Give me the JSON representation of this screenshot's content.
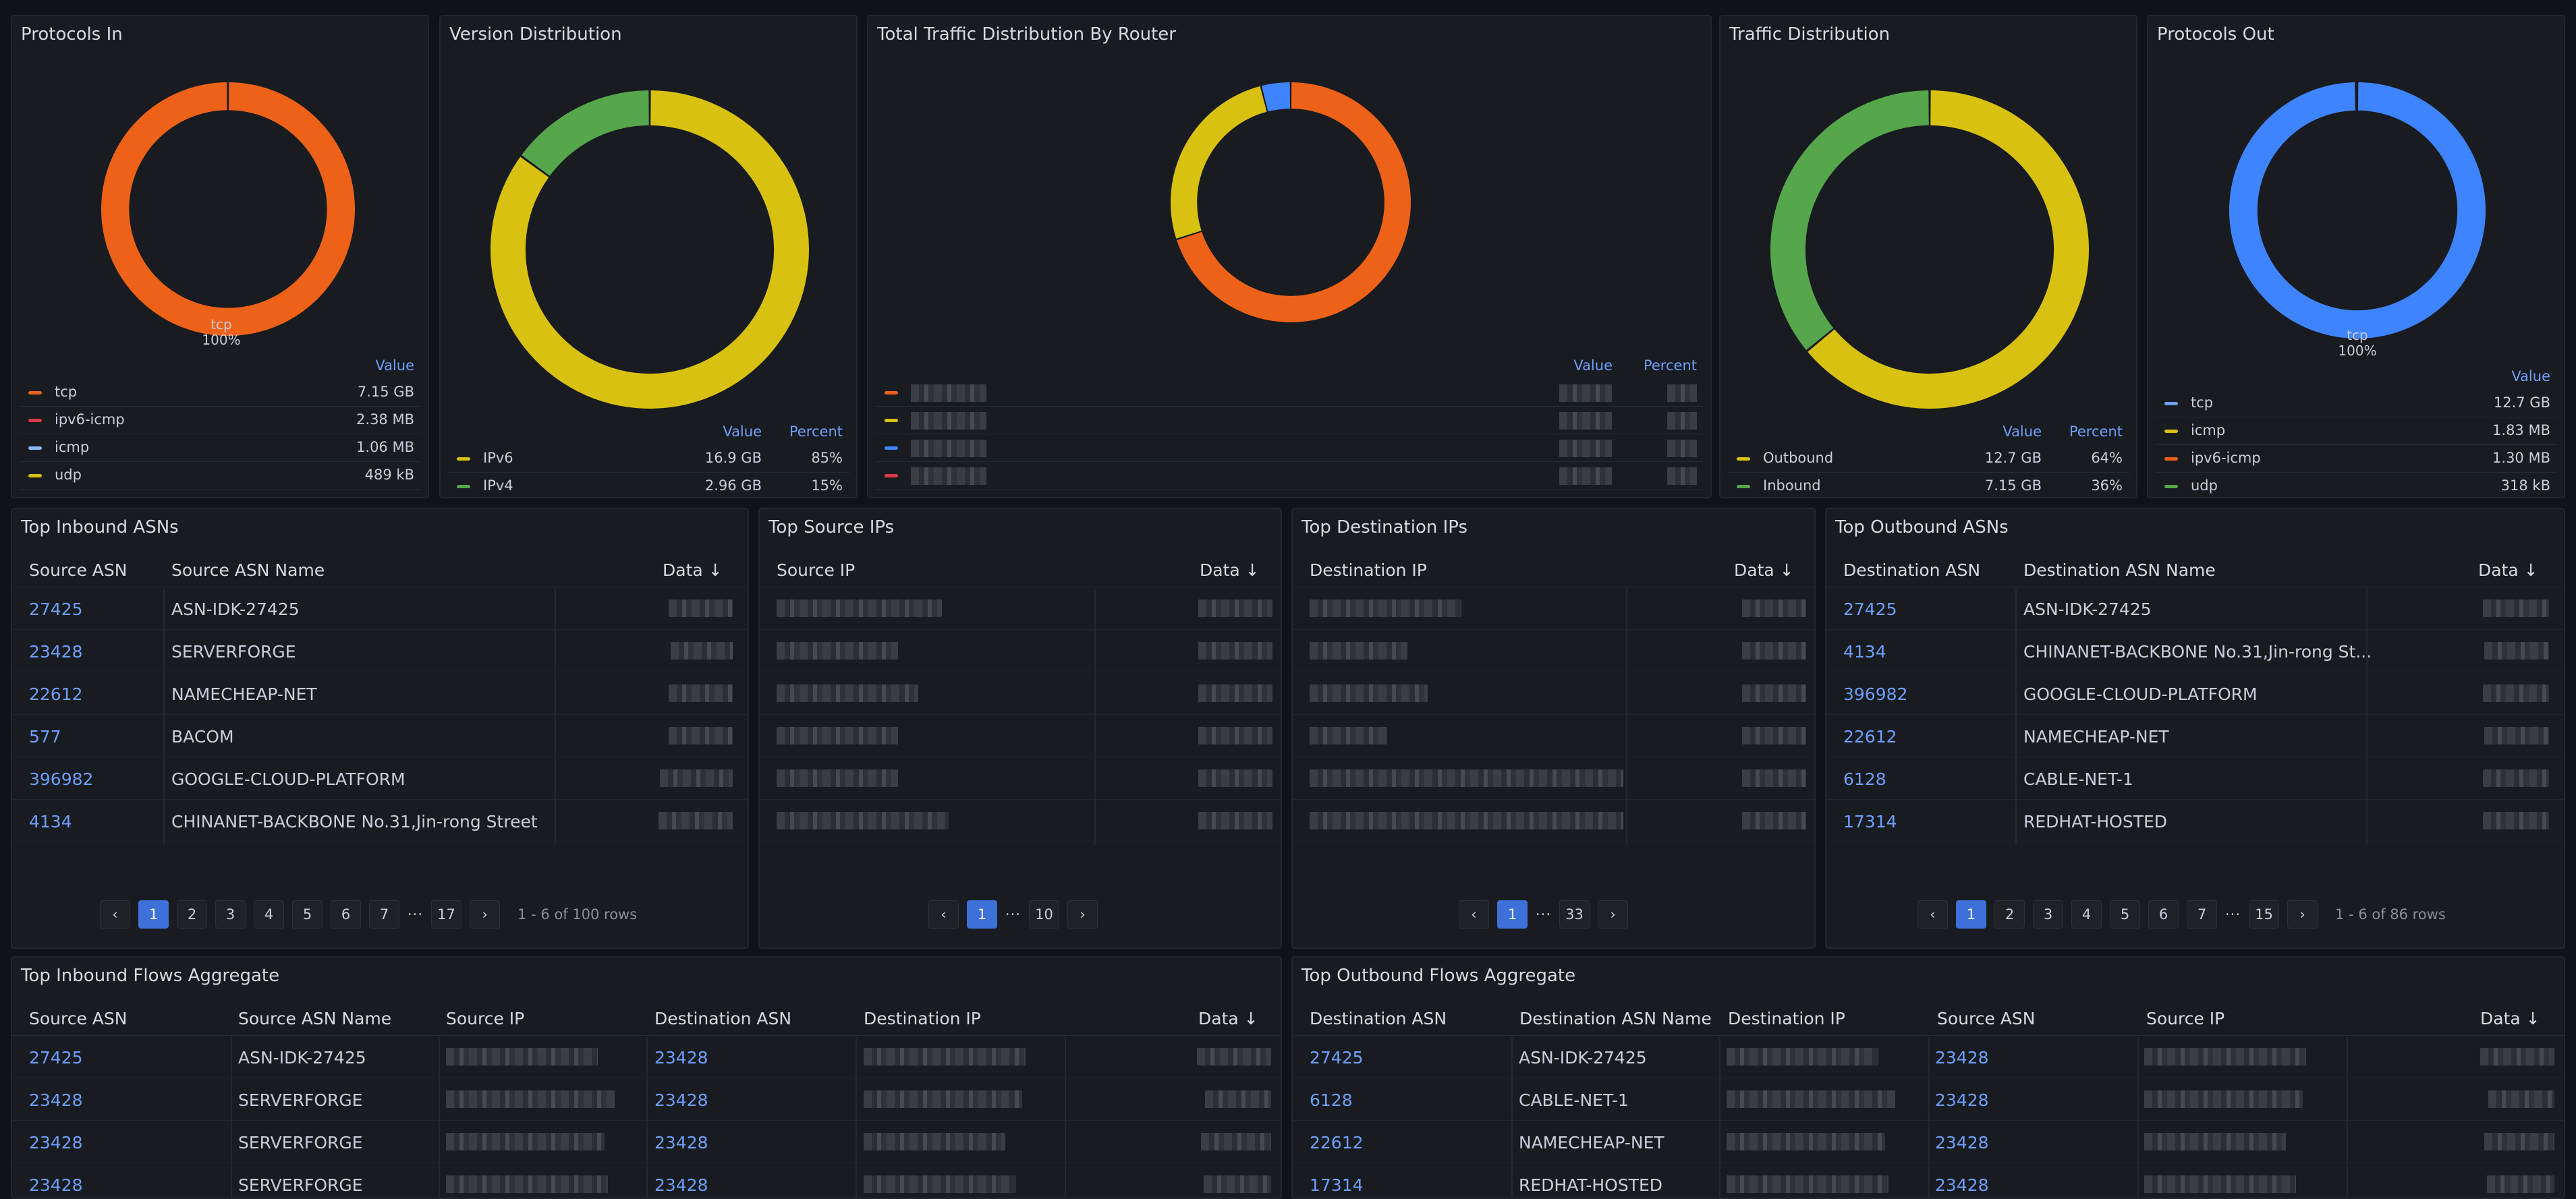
{
  "colors": {
    "orange": "#ed6218",
    "yellow": "#d8c110",
    "green": "#56a64b",
    "blue": "#3f84ff",
    "red": "#e0394a",
    "lightblue": "#8ab8ff",
    "link": "#6e9fff"
  },
  "protocols_in": {
    "title": "Protocols In",
    "center_label": "tcp",
    "center_pct": "100%",
    "hdr_value": "Value",
    "items": [
      {
        "name": "tcp",
        "value": "7.15 GB",
        "color": "#ed6218"
      },
      {
        "name": "ipv6-icmp",
        "value": "2.38 MB",
        "color": "#e0394a"
      },
      {
        "name": "icmp",
        "value": "1.06 MB",
        "color": "#8ab8ff"
      },
      {
        "name": "udp",
        "value": "489 kB",
        "color": "#d8c110"
      }
    ],
    "chart_data": {
      "type": "pie",
      "categories": [
        "tcp",
        "ipv6-icmp",
        "icmp",
        "udp"
      ],
      "values": [
        100,
        0.03,
        0.01,
        0.007
      ]
    }
  },
  "version_distribution": {
    "title": "Version Distribution",
    "hdr_value": "Value",
    "hdr_percent": "Percent",
    "items": [
      {
        "name": "IPv6",
        "value": "16.9 GB",
        "pct": "85%",
        "color": "#d8c110"
      },
      {
        "name": "IPv4",
        "value": "2.96 GB",
        "pct": "15%",
        "color": "#56a64b"
      }
    ],
    "chart_data": {
      "type": "pie",
      "categories": [
        "IPv6",
        "IPv4"
      ],
      "values": [
        85,
        15
      ]
    }
  },
  "traffic_by_router": {
    "title": "Total Traffic Distribution By Router",
    "hdr_value": "Value",
    "hdr_percent": "Percent",
    "items": [
      {
        "color": "#ed6218"
      },
      {
        "color": "#d8c110"
      },
      {
        "color": "#3f84ff"
      },
      {
        "color": "#e0394a"
      }
    ],
    "chart_data": {
      "type": "pie",
      "values": [
        70,
        26,
        4
      ]
    }
  },
  "traffic_distribution": {
    "title": "Traffic Distribution",
    "hdr_value": "Value",
    "hdr_percent": "Percent",
    "items": [
      {
        "name": "Outbound",
        "value": "12.7 GB",
        "pct": "64%",
        "color": "#d8c110"
      },
      {
        "name": "Inbound",
        "value": "7.15 GB",
        "pct": "36%",
        "color": "#56a64b"
      }
    ],
    "chart_data": {
      "type": "pie",
      "categories": [
        "Outbound",
        "Inbound"
      ],
      "values": [
        64,
        36
      ]
    }
  },
  "protocols_out": {
    "title": "Protocols Out",
    "center_label": "tcp",
    "center_pct": "100%",
    "hdr_value": "Value",
    "items": [
      {
        "name": "tcp",
        "value": "12.7 GB",
        "color": "#6e9fff"
      },
      {
        "name": "icmp",
        "value": "1.83 MB",
        "color": "#d8c110"
      },
      {
        "name": "ipv6-icmp",
        "value": "1.30 MB",
        "color": "#ed6218"
      },
      {
        "name": "udp",
        "value": "318 kB",
        "color": "#56a64b"
      }
    ],
    "chart_data": {
      "type": "pie",
      "categories": [
        "tcp",
        "icmp",
        "ipv6-icmp",
        "udp"
      ],
      "values": [
        100,
        0.014,
        0.01,
        0.002
      ]
    }
  },
  "top_inbound_asns": {
    "title": "Top Inbound ASNs",
    "cols": [
      "Source ASN",
      "Source ASN Name",
      "Data"
    ],
    "rows": [
      {
        "asn": "27425",
        "name": "ASN-IDK-27425"
      },
      {
        "asn": "23428",
        "name": "SERVERFORGE"
      },
      {
        "asn": "22612",
        "name": "NAMECHEAP-NET"
      },
      {
        "asn": "577",
        "name": "BACOM"
      },
      {
        "asn": "396982",
        "name": "GOOGLE-CLOUD-PLATFORM"
      },
      {
        "asn": "4134",
        "name": "CHINANET-BACKBONE No.31,Jin-rong Street"
      }
    ],
    "pages": [
      "1",
      "2",
      "3",
      "4",
      "5",
      "6",
      "7",
      "17"
    ],
    "summary": "1 - 6 of 100 rows"
  },
  "top_source_ips": {
    "title": "Top Source IPs",
    "cols": [
      "Source IP",
      "Data"
    ],
    "pages": [
      "1",
      "10"
    ]
  },
  "top_destination_ips": {
    "title": "Top Destination IPs",
    "cols": [
      "Destination IP",
      "Data"
    ],
    "pages": [
      "1",
      "33"
    ]
  },
  "top_outbound_asns": {
    "title": "Top Outbound ASNs",
    "cols": [
      "Destination ASN",
      "Destination ASN Name",
      "Data"
    ],
    "rows": [
      {
        "asn": "27425",
        "name": "ASN-IDK-27425"
      },
      {
        "asn": "4134",
        "name": "CHINANET-BACKBONE No.31,Jin-rong St..."
      },
      {
        "asn": "396982",
        "name": "GOOGLE-CLOUD-PLATFORM"
      },
      {
        "asn": "22612",
        "name": "NAMECHEAP-NET"
      },
      {
        "asn": "6128",
        "name": "CABLE-NET-1"
      },
      {
        "asn": "17314",
        "name": "REDHAT-HOSTED"
      }
    ],
    "pages": [
      "1",
      "2",
      "3",
      "4",
      "5",
      "6",
      "7",
      "15"
    ],
    "summary": "1 - 6 of 86 rows"
  },
  "inbound_flows": {
    "title": "Top Inbound Flows Aggregate",
    "cols": [
      "Source ASN",
      "Source ASN Name",
      "Source IP",
      "Destination ASN",
      "Destination IP",
      "Data"
    ],
    "rows": [
      {
        "sasn": "27425",
        "sname": "ASN-IDK-27425",
        "dasn": "23428"
      },
      {
        "sasn": "23428",
        "sname": "SERVERFORGE",
        "dasn": "23428"
      },
      {
        "sasn": "23428",
        "sname": "SERVERFORGE",
        "dasn": "23428"
      },
      {
        "sasn": "23428",
        "sname": "SERVERFORGE",
        "dasn": "23428"
      }
    ]
  },
  "outbound_flows": {
    "title": "Top Outbound Flows Aggregate",
    "cols": [
      "Destination ASN",
      "Destination ASN Name",
      "Destination IP",
      "Source ASN",
      "Source IP",
      "Data"
    ],
    "rows": [
      {
        "dasn": "27425",
        "dname": "ASN-IDK-27425",
        "sasn": "23428"
      },
      {
        "dasn": "6128",
        "dname": "CABLE-NET-1",
        "sasn": "23428"
      },
      {
        "dasn": "22612",
        "dname": "NAMECHEAP-NET",
        "sasn": "23428"
      },
      {
        "dasn": "17314",
        "dname": "REDHAT-HOSTED",
        "sasn": "23428"
      }
    ]
  }
}
